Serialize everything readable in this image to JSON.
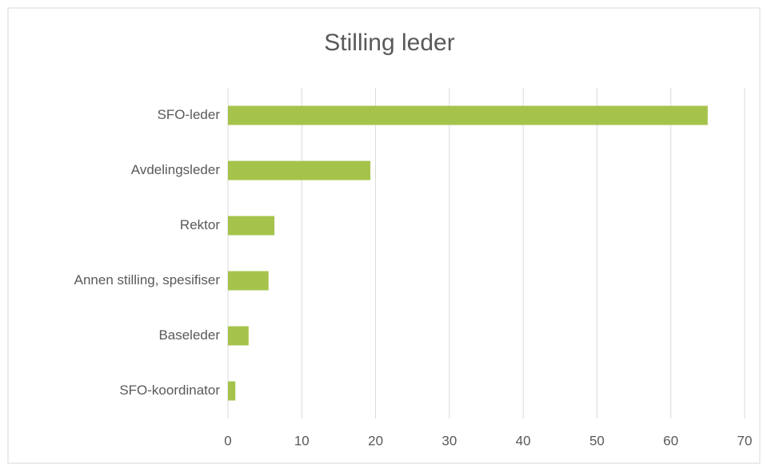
{
  "chart_data": {
    "type": "bar",
    "orientation": "horizontal",
    "title": "Stilling leder",
    "categories": [
      "SFO-leder",
      "Avdelingsleder",
      "Rektor",
      "Annen stilling, spesifiser",
      "Baseleder",
      "SFO-koordinator"
    ],
    "values": [
      65,
      19.3,
      6.3,
      5.5,
      2.8,
      1.0
    ],
    "color": "#a5c34b",
    "xlim": [
      0,
      70
    ],
    "xticks": [
      0,
      10,
      20,
      30,
      40,
      50,
      60,
      70
    ],
    "grid": true
  }
}
